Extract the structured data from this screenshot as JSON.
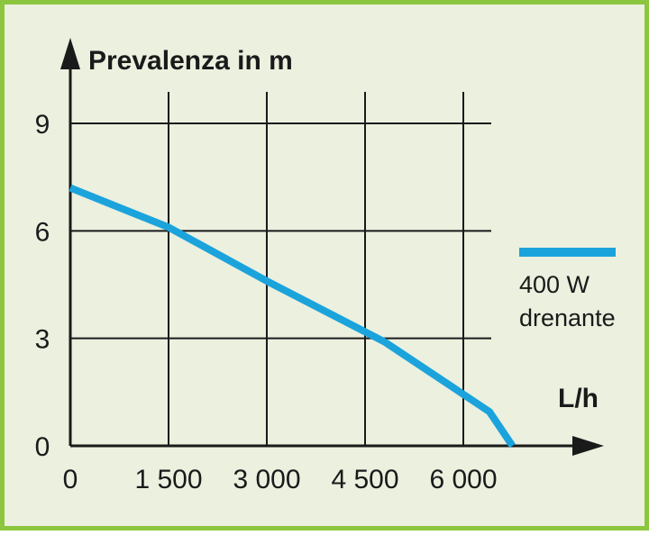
{
  "chart_data": {
    "type": "line",
    "xlabel": "L/h",
    "ylabel": "Prevalenza in m",
    "xlim": [
      0,
      6000
    ],
    "ylim": [
      0,
      9
    ],
    "x_ticks": [
      0,
      1500,
      3000,
      4500,
      6000
    ],
    "x_tick_labels": [
      "0",
      "1 500",
      "3 000",
      "4 500",
      "6 000"
    ],
    "y_ticks": [
      0,
      3,
      6,
      9
    ],
    "y_tick_labels": [
      "0",
      "3",
      "6",
      "9"
    ],
    "grid": true,
    "legend": "right",
    "series": [
      {
        "name": "400 W drenante",
        "name_lines": [
          "400 W",
          "drenante"
        ],
        "color": "#1ba3dc",
        "x": [
          0,
          1500,
          3000,
          4800,
          6400,
          6750
        ],
        "y": [
          7.2,
          6.1,
          4.6,
          2.9,
          0.95,
          0
        ]
      }
    ]
  }
}
